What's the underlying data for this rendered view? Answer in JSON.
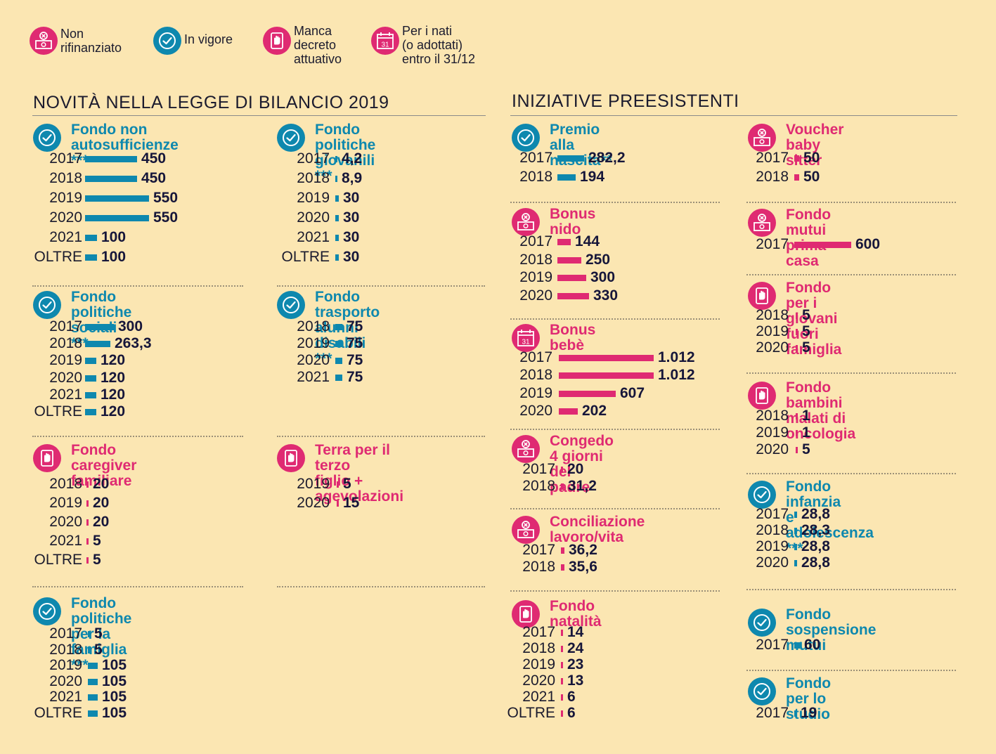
{
  "colors": {
    "blue": "#0e88ae",
    "pink": "#df2a72",
    "background": "#fbe6b2",
    "text": "#1b1b2e"
  },
  "legend": [
    {
      "icon": "not-refinanced-icon",
      "color": "pink",
      "label": "Non\nrifinanziato"
    },
    {
      "icon": "check-icon",
      "color": "blue",
      "label": "In vigore"
    },
    {
      "icon": "decree-missing-icon",
      "color": "pink",
      "label": "Manca\ndecreto\nattuativo"
    },
    {
      "icon": "calendar-icon",
      "color": "pink",
      "label": "Per i nati\n(o adottati)\nentro il 31/12"
    }
  ],
  "sections": {
    "left_title": "NOVITÀ NELLA LEGGE DI BILANCIO 2019",
    "right_title": "INIZIATIVE PREESISTENTI"
  },
  "chart_data": [
    {
      "type": "bar",
      "title": "Fondo non\nautosufficienze ***",
      "status": "check-icon",
      "color": "blue",
      "categories": [
        "2017",
        "2018",
        "2019",
        "2020",
        "2021",
        "OLTRE"
      ],
      "labels": [
        "450",
        "450",
        "550",
        "550",
        "100",
        "100"
      ],
      "values": [
        450,
        450,
        550,
        550,
        100,
        100
      ]
    },
    {
      "type": "bar",
      "title": "Fondo politiche\ngiovanili ***",
      "status": "check-icon",
      "color": "blue",
      "categories": [
        "2017",
        "2018",
        "2019",
        "2020",
        "2021",
        "OLTRE"
      ],
      "labels": [
        "4,2",
        "8,9",
        "30",
        "30",
        "30",
        "30"
      ],
      "values": [
        4.2,
        8.9,
        30,
        30,
        30,
        30
      ]
    },
    {
      "type": "bar",
      "title": "Fondo politiche\nsociali ***",
      "status": "check-icon",
      "color": "blue",
      "categories": [
        "2017",
        "2018",
        "2019",
        "2020",
        "2021",
        "OLTRE"
      ],
      "labels": [
        "300",
        "263,3",
        "120",
        "120",
        "120",
        "120"
      ],
      "values": [
        300,
        263.3,
        120,
        120,
        120,
        120
      ]
    },
    {
      "type": "bar",
      "title": "Fondo trasporto\nalunni disabili ***",
      "status": "check-icon",
      "color": "blue",
      "categories": [
        "2018",
        "2019",
        "2020",
        "2021"
      ],
      "labels": [
        "75",
        "75",
        "75",
        "75"
      ],
      "values": [
        75,
        75,
        75,
        75
      ]
    },
    {
      "type": "bar",
      "title": "Fondo caregiver\nfamiliare",
      "status": "decree-missing-icon",
      "color": "pink",
      "categories": [
        "2018",
        "2019",
        "2020",
        "2021",
        "OLTRE"
      ],
      "labels": [
        "20",
        "20",
        "20",
        "5",
        "5"
      ],
      "values": [
        20,
        20,
        20,
        5,
        5
      ]
    },
    {
      "type": "bar",
      "title": "Terra per il terzo\nfiglio + agevolazioni",
      "status": "decree-missing-icon",
      "color": "pink",
      "categories": [
        "2019",
        "2020"
      ],
      "labels": [
        "5",
        "15"
      ],
      "values": [
        5,
        15
      ]
    },
    {
      "type": "bar",
      "title": "Fondo politiche\nper la famiglia ***",
      "status": "check-icon",
      "color": "blue",
      "categories": [
        "2017",
        "2018",
        "2019",
        "2020",
        "2021",
        "OLTRE"
      ],
      "labels": [
        "5",
        "5",
        "105",
        "105",
        "105",
        "105"
      ],
      "values": [
        5,
        5,
        105,
        105,
        105,
        105
      ]
    },
    {
      "type": "bar",
      "title": "Premio\nalla nascita**",
      "status": "check-icon",
      "color": "blue",
      "categories": [
        "2017",
        "2018"
      ],
      "labels": [
        "282,2",
        "194"
      ],
      "values": [
        282.2,
        194
      ]
    },
    {
      "type": "bar",
      "title": "Bonus nido",
      "status": "not-refinanced-icon",
      "color": "pink",
      "categories": [
        "2017",
        "2018",
        "2019",
        "2020"
      ],
      "labels": [
        "144",
        "250",
        "300",
        "330"
      ],
      "values": [
        144,
        250,
        300,
        330
      ]
    },
    {
      "type": "bar",
      "title": "Bonus bebè",
      "status": "calendar-icon",
      "color": "pink",
      "categories": [
        "2017",
        "2018",
        "2019",
        "2020"
      ],
      "labels": [
        "1.012",
        "1.012",
        "607",
        "202"
      ],
      "values": [
        1012,
        1012,
        607,
        202
      ]
    },
    {
      "type": "bar",
      "title": "Congedo 4 giorni\ndel padre",
      "status": "not-refinanced-icon",
      "color": "pink",
      "categories": [
        "2017",
        "2018"
      ],
      "labels": [
        "20",
        "31,2"
      ],
      "values": [
        20,
        31.2
      ]
    },
    {
      "type": "bar",
      "title": "Conciliazione\nlavoro/vita",
      "status": "not-refinanced-icon",
      "color": "pink",
      "categories": [
        "2017",
        "2018"
      ],
      "labels": [
        "36,2",
        "35,6"
      ],
      "values": [
        36.2,
        35.6
      ]
    },
    {
      "type": "bar",
      "title": "Fondo natalità",
      "status": "decree-missing-icon",
      "color": "pink",
      "categories": [
        "2017",
        "2018",
        "2019",
        "2020",
        "2021",
        "OLTRE"
      ],
      "labels": [
        "14",
        "24",
        "23",
        "13",
        "6",
        "6"
      ],
      "values": [
        14,
        24,
        23,
        13,
        6,
        6
      ]
    },
    {
      "type": "bar",
      "title": "Voucher\nbaby sitter",
      "status": "not-refinanced-icon",
      "color": "pink",
      "categories": [
        "2017",
        "2018"
      ],
      "labels": [
        "50",
        "50"
      ],
      "values": [
        50,
        50
      ]
    },
    {
      "type": "bar",
      "title": "Fondo mutui\nprima casa",
      "status": "not-refinanced-icon",
      "color": "pink",
      "categories": [
        "2017"
      ],
      "labels": [
        "600"
      ],
      "values": [
        600
      ]
    },
    {
      "type": "bar",
      "title": "Fondo per i giovani\nfuori famiglia",
      "status": "decree-missing-icon",
      "color": "pink",
      "categories": [
        "2018",
        "2019",
        "2020"
      ],
      "labels": [
        "5",
        "5",
        "5"
      ],
      "values": [
        5,
        5,
        5
      ]
    },
    {
      "type": "bar",
      "title": "Fondo bambini\nmalati di oncologia",
      "status": "decree-missing-icon",
      "color": "pink",
      "categories": [
        "2018",
        "2019",
        "2020"
      ],
      "labels": [
        "1",
        "1",
        "5"
      ],
      "values": [
        1,
        1,
        5
      ]
    },
    {
      "type": "bar",
      "title": "Fondo infanzia\ne adolescenza ***",
      "status": "check-icon",
      "color": "blue",
      "categories": [
        "2017",
        "2018",
        "2019",
        "2020"
      ],
      "labels": [
        "28,8",
        "28,3",
        "28,8",
        "28,8"
      ],
      "values": [
        28.8,
        28.3,
        28.8,
        28.8
      ]
    },
    {
      "type": "bar",
      "title": "Fondo sospensione\nmutui",
      "status": "check-icon",
      "color": "blue",
      "categories": [
        "2017"
      ],
      "labels": [
        "60"
      ],
      "values": [
        60
      ]
    },
    {
      "type": "bar",
      "title": "Fondo per lo\nstudio",
      "status": "check-icon",
      "color": "blue",
      "categories": [
        "2017"
      ],
      "labels": [
        "19"
      ],
      "values": [
        19
      ]
    }
  ]
}
